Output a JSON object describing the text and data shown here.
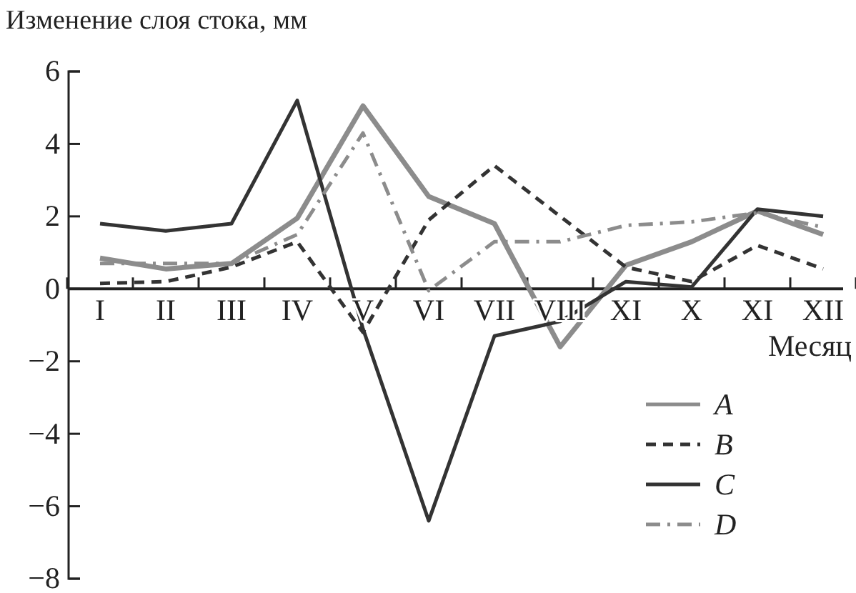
{
  "chart_data": {
    "type": "line",
    "ylabel": "Изменение слоя стока, мм",
    "xlabel": "Месяц",
    "categories": [
      "I",
      "II",
      "III",
      "IV",
      "V",
      "VI",
      "VII",
      "VIII",
      "XI",
      "X",
      "XI",
      "XII"
    ],
    "ylim": [
      -8,
      6
    ],
    "yticks": [
      -8,
      -6,
      -4,
      -2,
      0,
      2,
      4,
      6
    ],
    "grid": false,
    "legend": "bottom right",
    "marker": "none",
    "series": [
      {
        "name": "A",
        "color": "#8c8c8c",
        "line_style": "solid",
        "values": [
          0.85,
          0.55,
          0.7,
          1.95,
          5.05,
          2.55,
          1.8,
          -1.6,
          0.65,
          1.3,
          2.15,
          1.5
        ]
      },
      {
        "name": "B",
        "color": "#333333",
        "line_style": "dashed",
        "values": [
          0.15,
          0.2,
          0.6,
          1.3,
          -1.2,
          1.9,
          3.4,
          2.0,
          0.6,
          0.2,
          1.2,
          0.55
        ]
      },
      {
        "name": "C",
        "color": "#333333",
        "line_style": "solid",
        "values": [
          1.8,
          1.6,
          1.8,
          5.2,
          -1.1,
          -6.4,
          -1.3,
          -0.9,
          0.2,
          0.05,
          2.2,
          2.0
        ]
      },
      {
        "name": "D",
        "color": "#8c8c8c",
        "line_style": "dashdot",
        "values": [
          0.7,
          0.7,
          0.7,
          1.5,
          4.3,
          -0.05,
          1.3,
          1.3,
          1.75,
          1.85,
          2.1,
          1.7
        ]
      }
    ]
  }
}
